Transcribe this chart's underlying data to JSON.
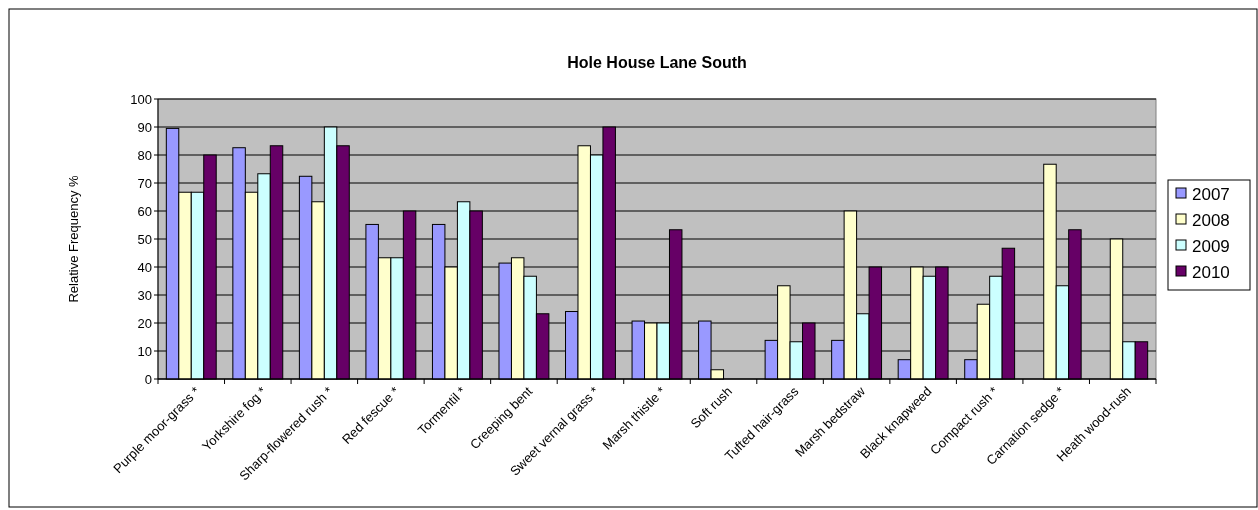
{
  "chart_data": {
    "type": "bar",
    "title": "Hole House Lane South",
    "ylabel": "Relative Frequency %",
    "categories": [
      "Purple moor-grass *",
      "Yorkshire fog *",
      "Sharp-flowered rush *",
      "Red fescue *",
      "Tormentil *",
      "Creeping bent",
      "Sweet vernal grass *",
      "Marsh thistle *",
      "Soft rush",
      "Tufted hair-grass",
      "Marsh bedstraw",
      "Black knapweed",
      "Compact rush *",
      "Carnation sedge *",
      "Heath wood-rush"
    ],
    "series": [
      {
        "name": "2007",
        "color": "#9999ff",
        "values": [
          89.5,
          82.6,
          72.4,
          55.2,
          55.2,
          41.4,
          24.1,
          20.7,
          20.7,
          13.8,
          13.8,
          6.9,
          6.9,
          null,
          null
        ]
      },
      {
        "name": "2008",
        "color": "#ffffcc",
        "values": [
          66.7,
          66.7,
          63.3,
          43.3,
          40,
          43.3,
          83.3,
          20,
          3.3,
          33.3,
          60,
          40,
          26.7,
          76.7,
          50
        ]
      },
      {
        "name": "2009",
        "color": "#ccffff",
        "values": [
          66.7,
          73.3,
          90,
          43.3,
          63.3,
          36.7,
          80,
          20,
          null,
          13.3,
          23.3,
          36.7,
          36.7,
          33.3,
          13.3
        ]
      },
      {
        "name": "2010",
        "color": "#660066",
        "values": [
          80,
          83.3,
          83.3,
          60,
          60,
          23.3,
          90,
          53.3,
          null,
          20,
          40,
          40,
          46.7,
          53.3,
          13.3
        ]
      }
    ],
    "ylim": [
      0,
      100
    ],
    "yticks": [
      0,
      10,
      20,
      30,
      40,
      50,
      60,
      70,
      80,
      90,
      100
    ],
    "grid": "y",
    "legend": "right"
  }
}
